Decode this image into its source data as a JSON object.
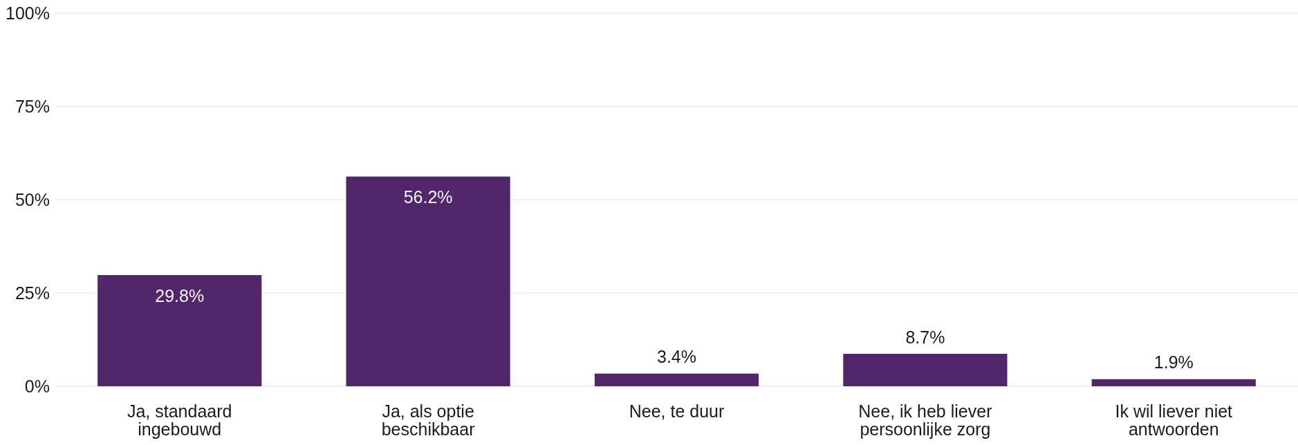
{
  "chart_data": {
    "type": "bar",
    "categories": [
      "Ja, standaard ingebouwd",
      "Ja, als optie beschikbaar",
      "Nee, te duur",
      "Nee, ik heb liever persoonlijke zorg",
      "Ik wil liever niet antwoorden"
    ],
    "values": [
      29.8,
      56.2,
      3.4,
      8.7,
      1.9
    ],
    "value_labels": [
      "29.8%",
      "56.2%",
      "3.4%",
      "8.7%",
      "1.9%"
    ],
    "color": "#52266a",
    "ylim": [
      0,
      100
    ],
    "yticks": [
      {
        "value": 0,
        "label": "0%"
      },
      {
        "value": 25,
        "label": "25%"
      },
      {
        "value": 50,
        "label": "50%"
      },
      {
        "value": 75,
        "label": "75%"
      },
      {
        "value": 100,
        "label": "100%"
      }
    ],
    "grid": "y"
  }
}
